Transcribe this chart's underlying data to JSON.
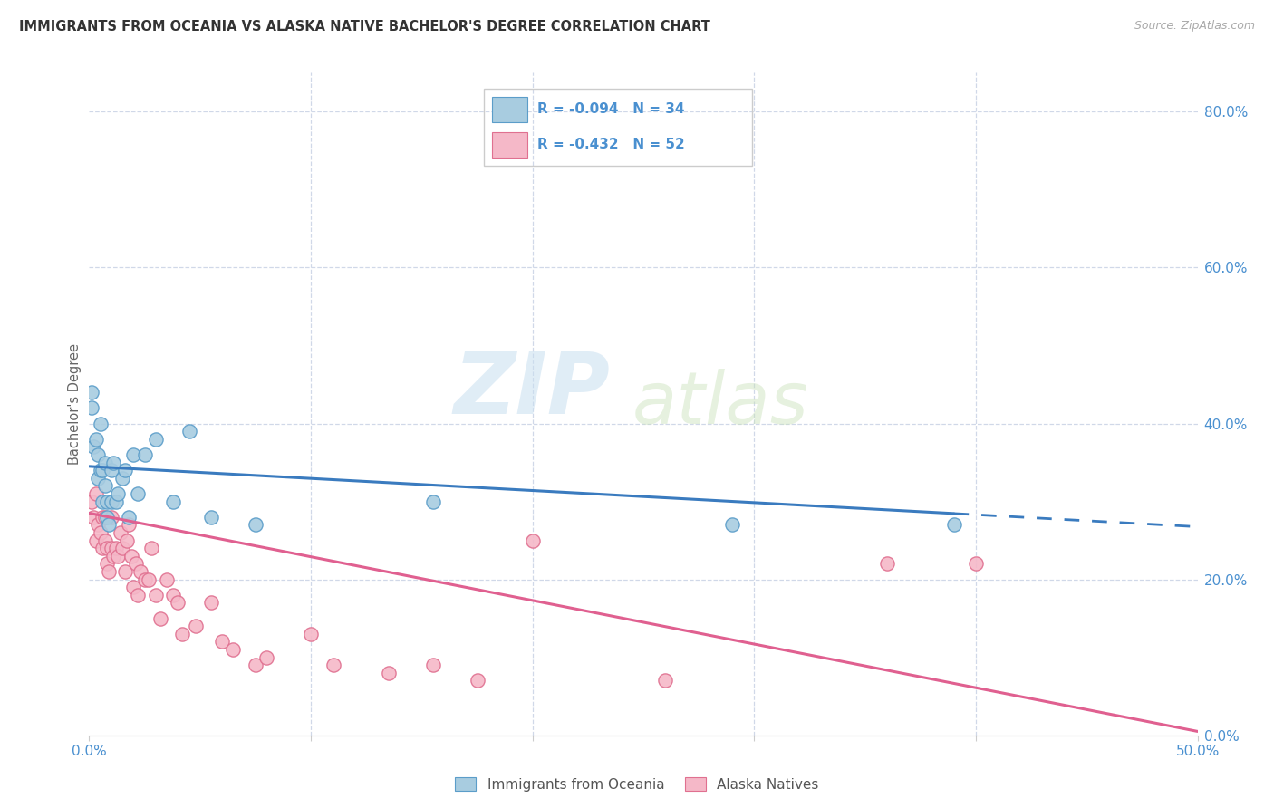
{
  "title": "IMMIGRANTS FROM OCEANIA VS ALASKA NATIVE BACHELOR'S DEGREE CORRELATION CHART",
  "source": "Source: ZipAtlas.com",
  "ylabel": "Bachelor's Degree",
  "xlim": [
    0.0,
    0.5
  ],
  "ylim": [
    0.0,
    0.85
  ],
  "y_ticks_right": [
    0.0,
    0.2,
    0.4,
    0.6,
    0.8
  ],
  "y_tick_labels_right": [
    "0.0%",
    "20.0%",
    "40.0%",
    "60.0%",
    "80.0%"
  ],
  "color_blue": "#a8cce0",
  "color_blue_edge": "#5b9dc9",
  "color_pink": "#f5b8c8",
  "color_pink_edge": "#e07090",
  "color_blue_line": "#3a7bbf",
  "color_pink_line": "#e06090",
  "watermark_zip": "ZIP",
  "watermark_atlas": "atlas",
  "background_color": "#ffffff",
  "grid_color": "#d0d8e8",
  "blue_x": [
    0.001,
    0.001,
    0.002,
    0.003,
    0.004,
    0.004,
    0.005,
    0.005,
    0.006,
    0.006,
    0.007,
    0.007,
    0.008,
    0.008,
    0.009,
    0.01,
    0.01,
    0.011,
    0.012,
    0.013,
    0.015,
    0.016,
    0.018,
    0.02,
    0.022,
    0.025,
    0.03,
    0.038,
    0.045,
    0.055,
    0.075,
    0.155,
    0.29,
    0.39
  ],
  "blue_y": [
    0.44,
    0.42,
    0.37,
    0.38,
    0.36,
    0.33,
    0.4,
    0.34,
    0.34,
    0.3,
    0.35,
    0.32,
    0.3,
    0.28,
    0.27,
    0.34,
    0.3,
    0.35,
    0.3,
    0.31,
    0.33,
    0.34,
    0.28,
    0.36,
    0.31,
    0.36,
    0.38,
    0.3,
    0.39,
    0.28,
    0.27,
    0.3,
    0.27,
    0.27
  ],
  "pink_x": [
    0.001,
    0.002,
    0.003,
    0.003,
    0.004,
    0.005,
    0.006,
    0.006,
    0.007,
    0.007,
    0.008,
    0.008,
    0.009,
    0.01,
    0.01,
    0.011,
    0.012,
    0.013,
    0.014,
    0.015,
    0.016,
    0.017,
    0.018,
    0.019,
    0.02,
    0.021,
    0.022,
    0.023,
    0.025,
    0.027,
    0.028,
    0.03,
    0.032,
    0.035,
    0.038,
    0.04,
    0.042,
    0.048,
    0.055,
    0.06,
    0.065,
    0.075,
    0.08,
    0.1,
    0.11,
    0.135,
    0.155,
    0.175,
    0.2,
    0.26,
    0.36,
    0.4
  ],
  "pink_y": [
    0.3,
    0.28,
    0.25,
    0.31,
    0.27,
    0.26,
    0.28,
    0.24,
    0.25,
    0.28,
    0.22,
    0.24,
    0.21,
    0.24,
    0.28,
    0.23,
    0.24,
    0.23,
    0.26,
    0.24,
    0.21,
    0.25,
    0.27,
    0.23,
    0.19,
    0.22,
    0.18,
    0.21,
    0.2,
    0.2,
    0.24,
    0.18,
    0.15,
    0.2,
    0.18,
    0.17,
    0.13,
    0.14,
    0.17,
    0.12,
    0.11,
    0.09,
    0.1,
    0.13,
    0.09,
    0.08,
    0.09,
    0.07,
    0.25,
    0.07,
    0.22,
    0.22
  ],
  "legend_text1": "R = -0.094   N = 34",
  "legend_text2": "R = -0.432   N = 52",
  "legend_label1": "Immigrants from Oceania",
  "legend_label2": "Alaska Natives"
}
